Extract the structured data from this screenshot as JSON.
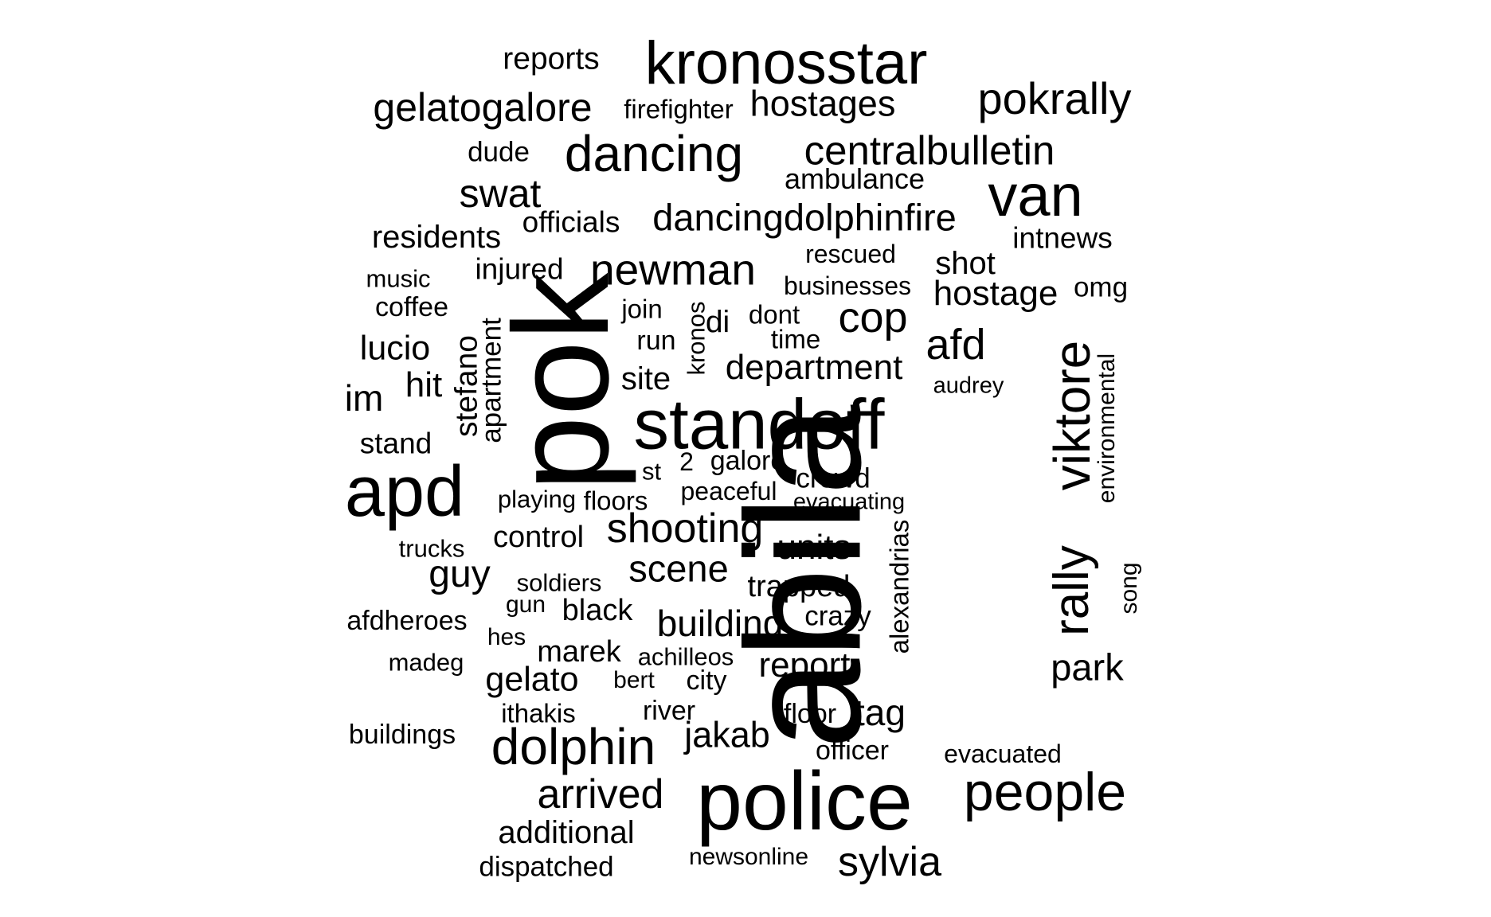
{
  "words": [
    {
      "text": "abila",
      "weight": 10.0,
      "vertical": true
    },
    {
      "text": "pok",
      "weight": 8.3,
      "vertical": true
    },
    {
      "text": "police",
      "weight": 7.0,
      "vertical": false
    },
    {
      "text": "standoff",
      "weight": 6.4,
      "vertical": false
    },
    {
      "text": "apd",
      "weight": 6.3,
      "vertical": false
    },
    {
      "text": "kronosstar",
      "weight": 5.5,
      "vertical": false
    },
    {
      "text": "people",
      "weight": 5.0,
      "vertical": false
    },
    {
      "text": "van",
      "weight": 5.0,
      "vertical": false
    },
    {
      "text": "viktore",
      "weight": 4.7,
      "vertical": true
    },
    {
      "text": "dancing",
      "weight": 4.4,
      "vertical": false
    },
    {
      "text": "dolphin",
      "weight": 4.3,
      "vertical": false
    },
    {
      "text": "pokrally",
      "weight": 4.2,
      "vertical": false
    },
    {
      "text": "rally",
      "weight": 4.1,
      "vertical": true
    },
    {
      "text": "newman",
      "weight": 4.0,
      "vertical": false
    },
    {
      "text": "centralbulletin",
      "weight": 3.8,
      "vertical": false
    },
    {
      "text": "gelatogalore",
      "weight": 3.7,
      "vertical": false
    },
    {
      "text": "shooting",
      "weight": 3.7,
      "vertical": false
    },
    {
      "text": "arrived",
      "weight": 3.6,
      "vertical": false
    },
    {
      "text": "sylvia",
      "weight": 3.6,
      "vertical": false
    },
    {
      "text": "afd",
      "weight": 3.6,
      "vertical": false
    },
    {
      "text": "cop",
      "weight": 3.6,
      "vertical": false
    },
    {
      "text": "dancingdolphinfire",
      "weight": 3.4,
      "vertical": false
    },
    {
      "text": "swat",
      "weight": 3.4,
      "vertical": false
    },
    {
      "text": "hostage",
      "weight": 3.3,
      "vertical": false
    },
    {
      "text": "hostages",
      "weight": 3.2,
      "vertical": false
    },
    {
      "text": "guy",
      "weight": 3.2,
      "vertical": false
    },
    {
      "text": "scene",
      "weight": 3.2,
      "vertical": false
    },
    {
      "text": "department",
      "weight": 3.2,
      "vertical": false
    },
    {
      "text": "building",
      "weight": 3.1,
      "vertical": false
    },
    {
      "text": "park",
      "weight": 3.1,
      "vertical": false
    },
    {
      "text": "jakab",
      "weight": 3.1,
      "vertical": false
    },
    {
      "text": "additional",
      "weight": 3.0,
      "vertical": false
    },
    {
      "text": "report",
      "weight": 3.0,
      "vertical": false
    },
    {
      "text": "tag",
      "weight": 3.0,
      "vertical": false
    },
    {
      "text": "units",
      "weight": 3.0,
      "vertical": false
    },
    {
      "text": "gelato",
      "weight": 2.9,
      "vertical": false
    },
    {
      "text": "stefano",
      "weight": 2.9,
      "vertical": true
    },
    {
      "text": "residents",
      "weight": 2.9,
      "vertical": false
    },
    {
      "text": "lucio",
      "weight": 2.9,
      "vertical": false
    },
    {
      "text": "im",
      "weight": 2.9,
      "vertical": false
    },
    {
      "text": "hit",
      "weight": 2.8,
      "vertical": false
    },
    {
      "text": "shot",
      "weight": 2.8,
      "vertical": false
    },
    {
      "text": "intnews",
      "weight": 2.7,
      "vertical": false
    },
    {
      "text": "reports",
      "weight": 2.7,
      "vertical": false
    },
    {
      "text": "control",
      "weight": 2.7,
      "vertical": false
    },
    {
      "text": "black",
      "weight": 2.7,
      "vertical": false
    },
    {
      "text": "marek",
      "weight": 2.7,
      "vertical": false
    },
    {
      "text": "trapped",
      "weight": 2.7,
      "vertical": false
    },
    {
      "text": "site",
      "weight": 2.7,
      "vertical": false
    },
    {
      "text": "ambulance",
      "weight": 2.6,
      "vertical": false
    },
    {
      "text": "injured",
      "weight": 2.6,
      "vertical": false
    },
    {
      "text": "officials",
      "weight": 2.6,
      "vertical": false
    },
    {
      "text": "apartment",
      "weight": 2.6,
      "vertical": true
    },
    {
      "text": "dispatched",
      "weight": 2.6,
      "vertical": false
    },
    {
      "text": "alexandrias",
      "weight": 2.6,
      "vertical": true
    },
    {
      "text": "stand",
      "weight": 2.6,
      "vertical": false
    },
    {
      "text": "dude",
      "weight": 2.5,
      "vertical": false
    },
    {
      "text": "crazy",
      "weight": 2.5,
      "vertical": false
    },
    {
      "text": "galore",
      "weight": 2.5,
      "vertical": false
    },
    {
      "text": "crowd",
      "weight": 2.5,
      "vertical": false
    },
    {
      "text": "buildings",
      "weight": 2.5,
      "vertical": false
    },
    {
      "text": "di",
      "weight": 2.5,
      "vertical": false
    },
    {
      "text": "kronos",
      "weight": 2.5,
      "vertical": true
    },
    {
      "text": "firefighter",
      "weight": 2.4,
      "vertical": false
    },
    {
      "text": "afdheroes",
      "weight": 2.4,
      "vertical": false
    },
    {
      "text": "ithakis",
      "weight": 2.4,
      "vertical": false
    },
    {
      "text": "floors",
      "weight": 2.4,
      "vertical": false
    },
    {
      "text": "city",
      "weight": 2.4,
      "vertical": false
    },
    {
      "text": "river",
      "weight": 2.4,
      "vertical": false
    },
    {
      "text": "floor",
      "weight": 2.4,
      "vertical": false
    },
    {
      "text": "officer",
      "weight": 2.4,
      "vertical": false
    },
    {
      "text": "run",
      "weight": 2.4,
      "vertical": false
    },
    {
      "text": "join",
      "weight": 2.4,
      "vertical": false
    },
    {
      "text": "time",
      "weight": 2.4,
      "vertical": false
    },
    {
      "text": "omg",
      "weight": 2.4,
      "vertical": false
    },
    {
      "text": "environmental",
      "weight": 2.4,
      "vertical": true
    },
    {
      "text": "businesses",
      "weight": 2.3,
      "vertical": false
    },
    {
      "text": "rescued",
      "weight": 2.3,
      "vertical": false
    },
    {
      "text": "peaceful",
      "weight": 2.3,
      "vertical": false
    },
    {
      "text": "dont",
      "weight": 2.3,
      "vertical": false
    },
    {
      "text": "evacuated",
      "weight": 2.3,
      "vertical": false
    },
    {
      "text": "achilleos",
      "weight": 2.3,
      "vertical": false
    },
    {
      "text": "coffee",
      "weight": 2.3,
      "vertical": false
    },
    {
      "text": "playing",
      "weight": 2.3,
      "vertical": false
    },
    {
      "text": "2",
      "weight": 2.3,
      "vertical": false
    },
    {
      "text": "soldiers",
      "weight": 2.3,
      "vertical": false
    },
    {
      "text": "trucks",
      "weight": 2.3,
      "vertical": false
    },
    {
      "text": "music",
      "weight": 2.3,
      "vertical": false
    },
    {
      "text": "gun",
      "weight": 2.3,
      "vertical": false
    },
    {
      "text": "hes",
      "weight": 2.3,
      "vertical": false
    },
    {
      "text": "madeg",
      "weight": 2.3,
      "vertical": false
    },
    {
      "text": "bert",
      "weight": 2.3,
      "vertical": false
    },
    {
      "text": "st",
      "weight": 2.3,
      "vertical": false
    },
    {
      "text": "audrey",
      "weight": 2.2,
      "vertical": false
    },
    {
      "text": "evacuating",
      "weight": 2.2,
      "vertical": false
    },
    {
      "text": "song",
      "weight": 2.2,
      "vertical": true
    },
    {
      "text": "newsonline",
      "weight": 2.2,
      "vertical": false
    }
  ]
}
